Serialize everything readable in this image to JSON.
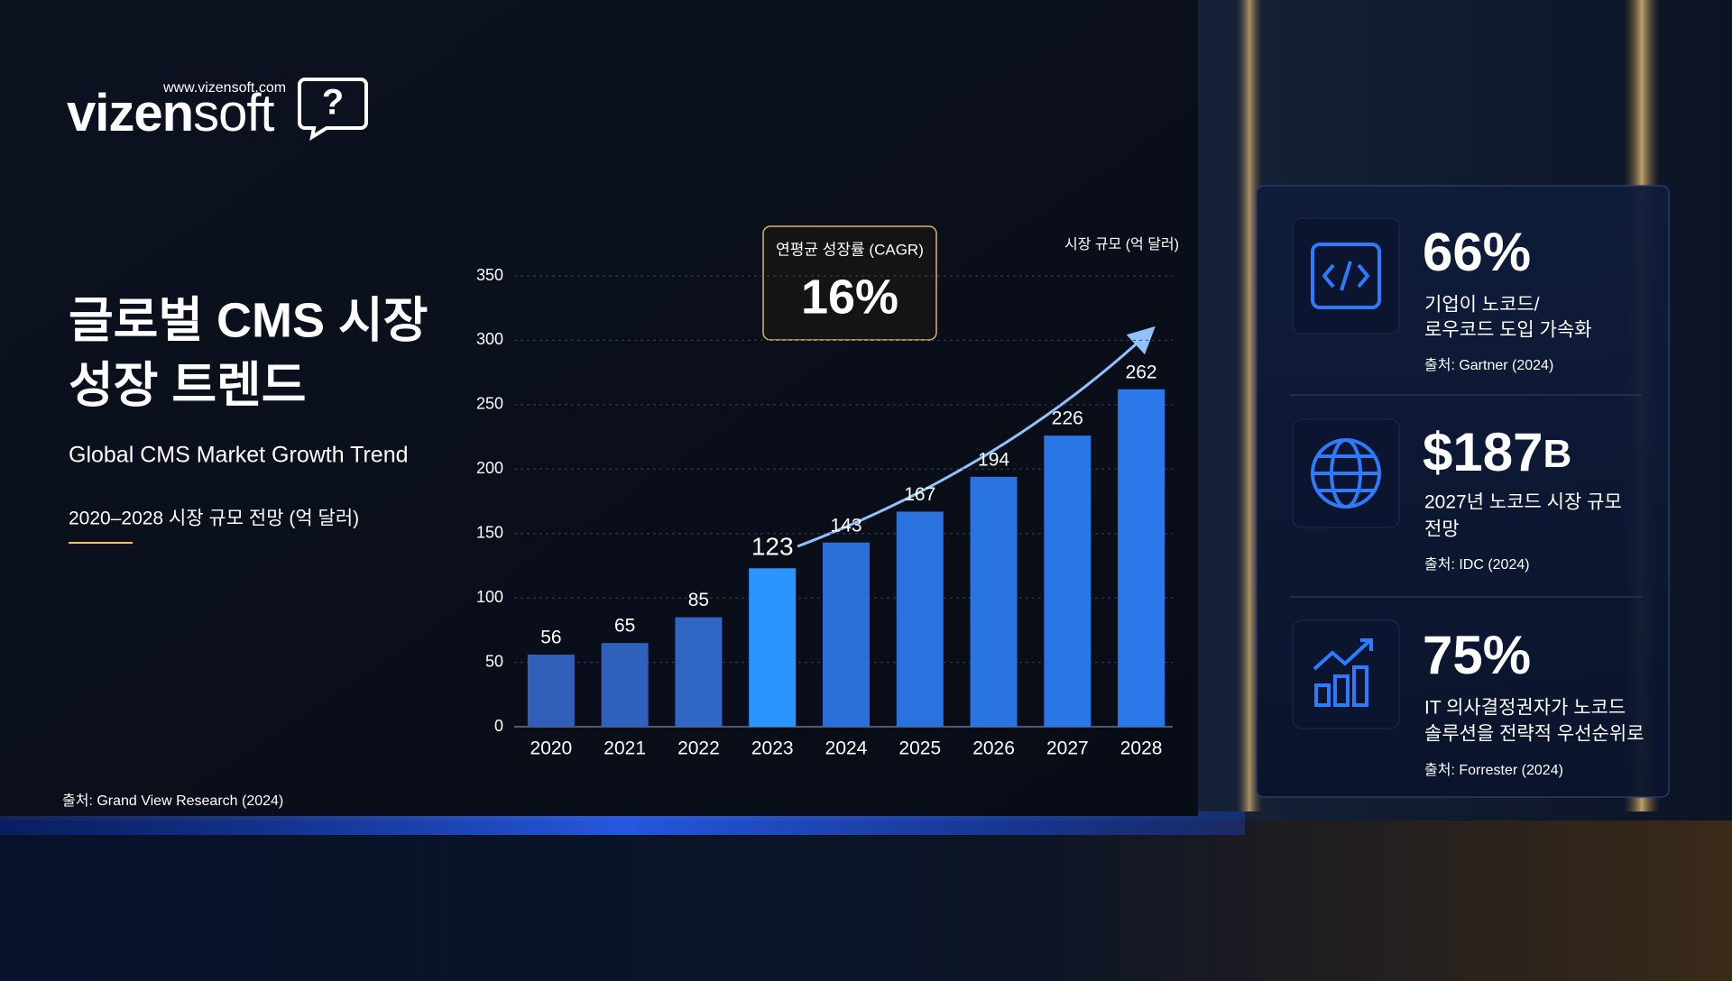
{
  "logo": {
    "url": "www.vizensoft.com",
    "brand_a": "vizen",
    "brand_b": "soft",
    "icon": "?"
  },
  "heading": {
    "title_line1": "글로벌 CMS 시장",
    "title_line2": "성장 트렌드",
    "subtitle": "Global CMS Market Growth Trend",
    "caption": "2020–2028 시장 규모 전망 (억 달러)"
  },
  "source": "출처: Grand View Research (2024)",
  "chart_data": {
    "type": "bar",
    "y_label": "시장 규모 (억 달러)",
    "categories": [
      "2020",
      "2021",
      "2022",
      "2023",
      "2024",
      "2025",
      "2026",
      "2027",
      "2028"
    ],
    "values": [
      56,
      65,
      85,
      123,
      143,
      167,
      194,
      226,
      262
    ],
    "colors": [
      "#2f5fb8",
      "#2f62bd",
      "#3066c4",
      "#2a94ff",
      "#2a6fda",
      "#2a72de",
      "#2a74e2",
      "#2a76e6",
      "#2a78ea"
    ],
    "value_label_colors": [
      "#ffffff",
      "#ffffff",
      "#ffffff",
      "#4fb4ff",
      "#ffffff",
      "#ffffff",
      "#ffffff",
      "#ffffff",
      "#ffffff"
    ],
    "ylim": [
      0,
      350
    ],
    "yticks": [
      0,
      50,
      100,
      150,
      200,
      250,
      300,
      350
    ],
    "grid": true,
    "annotation": {
      "label": "연평균 성장률 (CAGR)",
      "value": "16%"
    }
  },
  "stats": [
    {
      "value": "66%",
      "unit": "",
      "desc": [
        "기업이 노코드/",
        "로우코드 도입 가속화"
      ],
      "source": "출처: Gartner (2024)"
    },
    {
      "value": "$187",
      "unit": "B",
      "desc": [
        "2027년 노코드 시장 규모",
        "전망"
      ],
      "source": "출처: IDC (2024)"
    },
    {
      "value": "75%",
      "unit": "",
      "desc": [
        "IT 의사결정권자가 노코드",
        "솔루션을 전략적 우선순위로"
      ],
      "source": "출처: Forrester (2024)"
    }
  ]
}
